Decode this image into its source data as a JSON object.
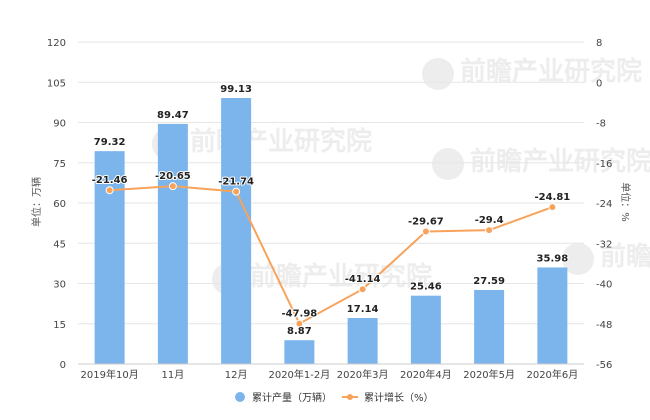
{
  "chart_data": {
    "type": "bar",
    "categories": [
      "2019年10月",
      "11月",
      "12月",
      "2020年1-2月",
      "2020年3月",
      "2020年4月",
      "2020年5月",
      "2020年6月"
    ],
    "series": [
      {
        "name": "累计产量（万辆）",
        "type": "bar",
        "axis": "left",
        "values": [
          79.32,
          89.47,
          99.13,
          8.87,
          17.14,
          25.46,
          27.59,
          35.98
        ],
        "labels": [
          "79.32",
          "89.47",
          "99.13",
          "8.87",
          "17.14",
          "25.46",
          "27.59",
          "35.98"
        ],
        "color": "#7cb5ec"
      },
      {
        "name": "累计增长（%）",
        "type": "line",
        "axis": "right",
        "values": [
          -21.46,
          -20.65,
          -21.74,
          -47.98,
          -41.14,
          -29.67,
          -29.4,
          -24.81
        ],
        "labels": [
          "-21.46",
          "-20.65",
          "-21.74",
          "-47.98",
          "-41.14",
          "-29.67",
          "-29.4",
          "-24.81"
        ],
        "color": "#f7a35c"
      }
    ],
    "y_left": {
      "label": "单位：万辆",
      "min": 0,
      "max": 120,
      "ticks": [
        0,
        15,
        30,
        45,
        60,
        75,
        90,
        105,
        120
      ]
    },
    "y_right": {
      "label": "单位：%",
      "min": -56,
      "max": 8,
      "ticks": [
        -56,
        -48,
        -40,
        -32,
        -24,
        -16,
        -8,
        0,
        8
      ]
    },
    "grid": true,
    "legend": "bottom-center"
  },
  "watermark": "前瞻产业研究院"
}
